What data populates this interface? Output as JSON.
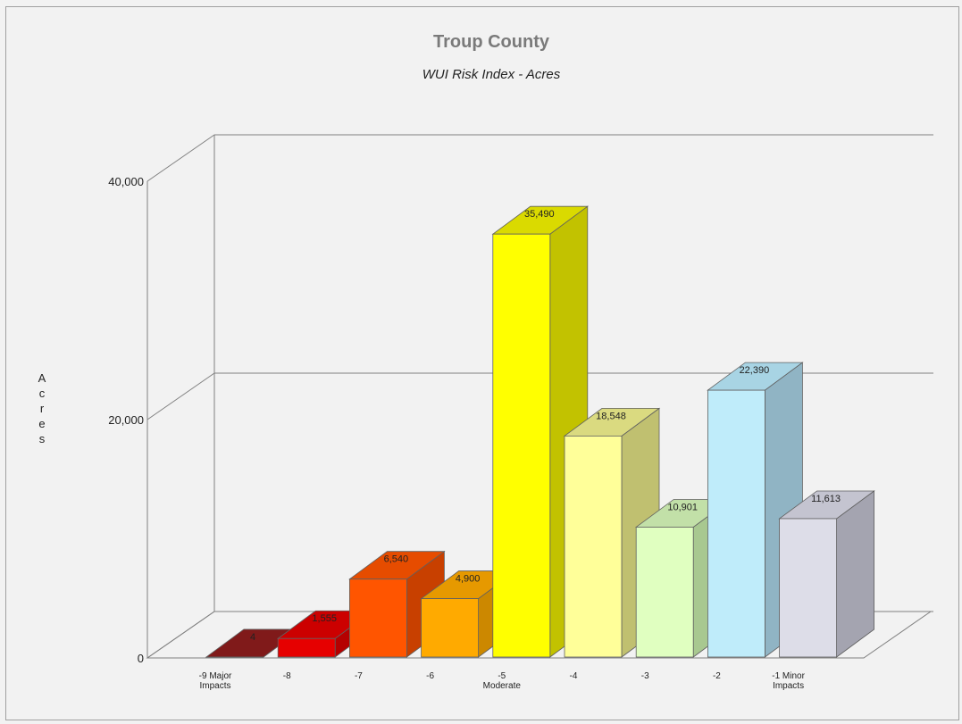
{
  "chart_data": {
    "type": "bar",
    "title": "Troup County",
    "subtitle": "WUI Risk Index - Acres",
    "ylabel": "Acres",
    "xlabel": "",
    "ylim": [
      0,
      40000
    ],
    "yticks": [
      "0",
      "20,000",
      "40,000"
    ],
    "grid": true,
    "categories": [
      [
        "-9 Major",
        "Impacts"
      ],
      [
        "-8"
      ],
      [
        "-7"
      ],
      [
        "-6"
      ],
      [
        "-5",
        "Moderate"
      ],
      [
        "-4"
      ],
      [
        "-3"
      ],
      [
        "-2"
      ],
      [
        "-1 Minor",
        "Impacts"
      ]
    ],
    "values": [
      4,
      1555,
      6540,
      4900,
      35490,
      18548,
      10901,
      22390,
      11613
    ],
    "value_labels": [
      "4",
      "1,555",
      "6,540",
      "4,900",
      "35,490",
      "18,548",
      "10,901",
      "22,390",
      "11,613"
    ],
    "colors": [
      {
        "front": "#6b1414",
        "side": "#4f0e0e",
        "top": "#801a1a"
      },
      {
        "front": "#e60000",
        "side": "#b50000",
        "top": "#cc0000"
      },
      {
        "front": "#ff5500",
        "side": "#c84000",
        "top": "#e64c00"
      },
      {
        "front": "#ffaa00",
        "side": "#cc8800",
        "top": "#e69900"
      },
      {
        "front": "#ffff00",
        "side": "#c2c200",
        "top": "#dada00"
      },
      {
        "front": "#ffff99",
        "side": "#c0c070",
        "top": "#dada80"
      },
      {
        "front": "#e0ffc0",
        "side": "#a8c890",
        "top": "#c2e0a8"
      },
      {
        "front": "#bfecfa",
        "side": "#90b4c4",
        "top": "#a8d4e4"
      },
      {
        "front": "#dddde8",
        "side": "#a4a4b0",
        "top": "#c4c4d0"
      }
    ]
  }
}
